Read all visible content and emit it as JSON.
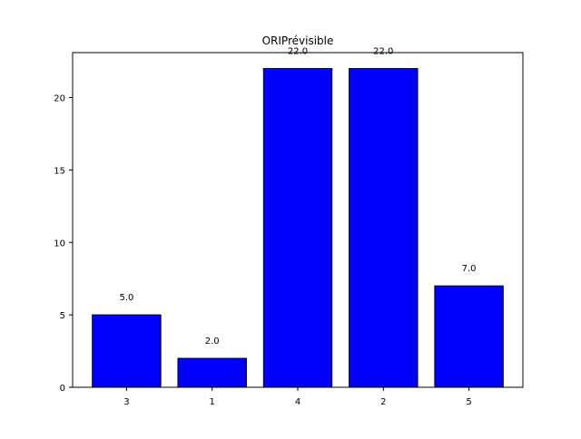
{
  "chart_data": {
    "type": "bar",
    "title": "ORIPrévisible",
    "xlabel": "",
    "ylabel": "",
    "categories": [
      "3",
      "1",
      "4",
      "2",
      "5"
    ],
    "values": [
      5.0,
      2.0,
      22.0,
      22.0,
      7.0
    ],
    "value_labels": [
      "5.0",
      "2.0",
      "22.0",
      "22.0",
      "7.0"
    ],
    "ylim": [
      0,
      23.1
    ],
    "yticks": [
      0,
      5,
      10,
      15,
      20
    ],
    "ytick_labels": [
      "0",
      "5",
      "10",
      "15",
      "20"
    ],
    "grid": false,
    "legend": "none",
    "colors": {
      "bar_fill": "#0000ff",
      "bar_edge": "#000000",
      "axis": "#000000",
      "background": "#ffffff"
    }
  }
}
